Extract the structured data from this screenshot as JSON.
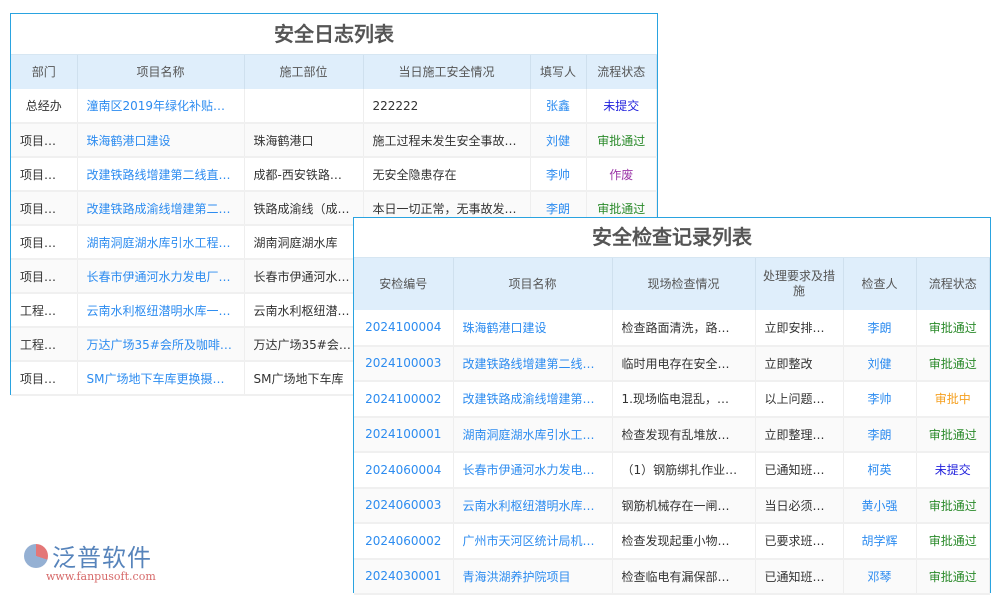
{
  "log": {
    "title": "安全日志列表",
    "headers": [
      "部门",
      "项目名称",
      "施工部位",
      "当日施工安全情况",
      "填写人",
      "流程状态"
    ],
    "rows": [
      [
        "总经办",
        "潼南区2019年绿化补贴项…",
        "",
        "222222",
        "张鑫",
        "未提交",
        "draft"
      ],
      [
        "项目三部",
        "珠海鹤港口建设",
        "珠海鹤港口",
        "施工过程未发生安全事故…",
        "刘健",
        "审批通过",
        "pass"
      ],
      [
        "项目一部",
        "改建铁路线增建第二线直…",
        "成都-西安铁路…",
        "无安全隐患存在",
        "李帅",
        "作废",
        "void"
      ],
      [
        "项目二部",
        "改建铁路成渝线增建第二…",
        "铁路成渝线（成…",
        "本日一切正常，无事故发…",
        "李朗",
        "审批通过",
        "pass"
      ],
      [
        "项目一部",
        "湖南洞庭湖水库引水工程…",
        "湖南洞庭湖水库",
        "",
        "",
        "",
        ""
      ],
      [
        "项目三部",
        "长春市伊通河水力发电厂…",
        "长春市伊通河水…",
        "",
        "",
        "",
        ""
      ],
      [
        "工程管…",
        "云南水利枢纽潜明水库一…",
        "云南水利枢纽潜…",
        "",
        "",
        "",
        ""
      ],
      [
        "工程管…",
        "万达广场35#会所及咖啡…",
        "万达广场35#会…",
        "",
        "",
        "",
        ""
      ],
      [
        "项目二部",
        "SM广场地下车库更换摄…",
        "SM广场地下车库",
        "",
        "",
        "",
        ""
      ]
    ]
  },
  "inspect": {
    "title": "安全检查记录列表",
    "headers": [
      "安检编号",
      "项目名称",
      "现场检查情况",
      "处理要求及措施",
      "检查人",
      "流程状态"
    ],
    "rows": [
      [
        "2024100004",
        "珠海鹤港口建设",
        "检查路面清洗，路…",
        "立即安排清…",
        "李朗",
        "审批通过",
        "pass"
      ],
      [
        "2024100003",
        "改建铁路线增建第二线…",
        "临时用电存在安全…",
        "立即整改",
        "刘健",
        "审批通过",
        "pass"
      ],
      [
        "2024100002",
        "改建铁路成渝线增建第…",
        "1.现场临电混乱，…",
        "以上问题限…",
        "李帅",
        "审批中",
        "pending"
      ],
      [
        "2024100001",
        "湖南洞庭湖水库引水工…",
        "检查发现有乱堆放…",
        "立即整理归类",
        "李朗",
        "审批通过",
        "pass"
      ],
      [
        "2024060004",
        "长春市伊通河水力发电…",
        "（1）钢筋绑扎作业…",
        "已通知班组…",
        "柯英",
        "未提交",
        "draft"
      ],
      [
        "2024060003",
        "云南水利枢纽潜明水库…",
        "钢筋机械存在一闸…",
        "当日必须整…",
        "黄小强",
        "审批通过",
        "pass"
      ],
      [
        "2024060002",
        "广州市天河区统计局机…",
        "检查发现起重小物…",
        "已要求班组…",
        "胡学辉",
        "审批通过",
        "pass"
      ],
      [
        "2024030001",
        "青海洪湖养护院项目",
        "检查临电有漏保部…",
        "已通知班组…",
        "邓琴",
        "审批通过",
        "pass"
      ]
    ]
  },
  "watermark": {
    "brand": "泛普软件",
    "url": "www.fanpusoft.com"
  }
}
